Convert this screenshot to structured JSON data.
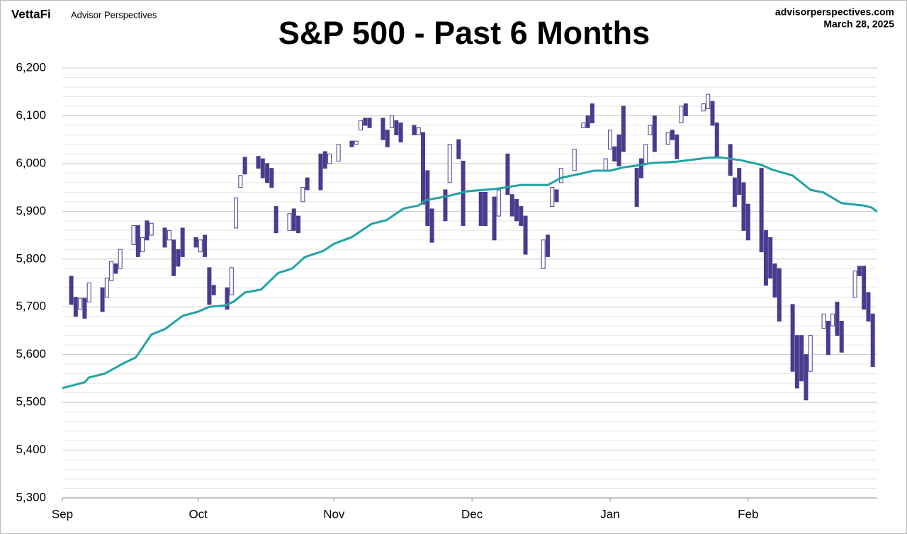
{
  "header": {
    "brand": "VettaFi",
    "publisher": "Advisor Perspectives",
    "site": "advisorperspectives.com",
    "date": "March 28, 2025"
  },
  "chart_data": {
    "type": "candlestick",
    "title": "S&P 500 - Past 6 Months",
    "xlim": [
      0,
      183
    ],
    "xticks": [
      {
        "value": 0,
        "label": "Sep"
      },
      {
        "value": 30.5,
        "label": "Oct"
      },
      {
        "value": 61,
        "label": "Nov"
      },
      {
        "value": 92,
        "label": "Dec"
      },
      {
        "value": 123,
        "label": "Jan"
      },
      {
        "value": 154,
        "label": "Feb"
      }
    ],
    "ylim": [
      5300,
      6200
    ],
    "yticks": [
      {
        "value": 5300,
        "label": "5,300"
      },
      {
        "value": 5400,
        "label": "5,400"
      },
      {
        "value": 5500,
        "label": "5,500"
      },
      {
        "value": 5600,
        "label": "5,600"
      },
      {
        "value": 5700,
        "label": "5,700"
      },
      {
        "value": 5800,
        "label": "5,800"
      },
      {
        "value": 5900,
        "label": "5,900"
      },
      {
        "value": 6000,
        "label": "6,000"
      },
      {
        "value": 6100,
        "label": "6,100"
      },
      {
        "value": 6200,
        "label": "6,200"
      }
    ],
    "grid": true,
    "minor_grid": true,
    "color": "#4b3b8f",
    "x": [
      2,
      3,
      4,
      5,
      6,
      9,
      10,
      11,
      12,
      13,
      16,
      17,
      18,
      19,
      20,
      23,
      24,
      25,
      26,
      27,
      30,
      31,
      32,
      33,
      34,
      37,
      38,
      39,
      40,
      41,
      44,
      45,
      46,
      47,
      48,
      51,
      52,
      53,
      54,
      55,
      58,
      59,
      60,
      62,
      65,
      66,
      67,
      68,
      69,
      72,
      73,
      74,
      75,
      76,
      79,
      80,
      81,
      82,
      83,
      86,
      87,
      89,
      90,
      94,
      95,
      97,
      98,
      100,
      101,
      102,
      103,
      104,
      108,
      109,
      110,
      111,
      112,
      115,
      117,
      118,
      119,
      122,
      123,
      124,
      125,
      126,
      129,
      130,
      131,
      132,
      133,
      136,
      137,
      138,
      139,
      140,
      144,
      145,
      146,
      147,
      150,
      151,
      152,
      153,
      154,
      157,
      158,
      159,
      160,
      161,
      164,
      165,
      166,
      167,
      168,
      171,
      172,
      173,
      174,
      175,
      178,
      179,
      180,
      181,
      182
    ],
    "open": [
      5764,
      5720,
      5695,
      5718,
      5710,
      5740,
      5720,
      5755,
      5790,
      5780,
      5830,
      5870,
      5815,
      5880,
      5850,
      5865,
      5840,
      5840,
      5820,
      5865,
      5845,
      5815,
      5850,
      5782,
      5745,
      5740,
      5725,
      5865,
      5950,
      6013,
      6015,
      6010,
      6000,
      5990,
      5910,
      5860,
      5905,
      5890,
      5920,
      5970,
      6020,
      6025,
      6000,
      6005,
      6047,
      6040,
      6070,
      6095,
      6095,
      6095,
      6070,
      6075,
      6090,
      6085,
      6080,
      6060,
      6065,
      5985,
      5905,
      5945,
      5960,
      6050,
      6005,
      5940,
      5940,
      5930,
      5890,
      6020,
      5935,
      5925,
      5910,
      5890,
      5780,
      5850,
      5910,
      5945,
      5960,
      5985,
      6075,
      6100,
      6125,
      5985,
      6030,
      6035,
      6060,
      6120,
      5990,
      6010,
      6000,
      6060,
      6100,
      6040,
      6070,
      6060,
      6085,
      6125,
      6110,
      6115,
      6130,
      6085,
      6040,
      5970,
      5990,
      5960,
      5915,
      5990,
      5860,
      5845,
      5790,
      5780,
      5705,
      5640,
      5640,
      5600,
      5565,
      5655,
      5670,
      5660,
      5710,
      5670,
      5720,
      5785,
      5785,
      5730,
      5685
    ],
    "close": [
      5705,
      5680,
      5718,
      5676,
      5750,
      5690,
      5760,
      5795,
      5770,
      5820,
      5870,
      5805,
      5845,
      5840,
      5875,
      5825,
      5860,
      5765,
      5785,
      5805,
      5825,
      5840,
      5805,
      5705,
      5725,
      5695,
      5782,
      5928,
      5975,
      5978,
      5990,
      5970,
      5960,
      5950,
      5855,
      5895,
      5860,
      5855,
      5950,
      5945,
      5945,
      5990,
      6020,
      6040,
      6035,
      6047,
      6090,
      6080,
      6075,
      6050,
      6035,
      6100,
      6060,
      6045,
      6060,
      6075,
      5915,
      5870,
      5835,
      5880,
      6040,
      6010,
      5870,
      5870,
      5870,
      5840,
      5945,
      5935,
      5890,
      5880,
      5870,
      5810,
      5840,
      5805,
      5950,
      5920,
      5990,
      6030,
      6085,
      6075,
      6085,
      6010,
      6070,
      6005,
      5995,
      6025,
      5910,
      5970,
      6040,
      6080,
      6025,
      6065,
      6050,
      6010,
      6120,
      6100,
      6125,
      6145,
      6080,
      6015,
      5975,
      5910,
      5935,
      5860,
      5840,
      5815,
      5745,
      5760,
      5720,
      5670,
      5565,
      5530,
      5545,
      5505,
      5640,
      5685,
      5600,
      5685,
      5640,
      5605,
      5775,
      5765,
      5695,
      5670,
      5575
    ],
    "moving_average": {
      "color": "#22a3a6",
      "x": [
        0,
        5,
        6,
        9.5,
        14,
        16.5,
        20,
        23,
        27,
        30.5,
        33,
        36.6,
        38.5,
        41,
        44.6,
        48.5,
        51.6,
        54.4,
        58.6,
        61,
        65,
        69.5,
        72.7,
        76.7,
        80,
        81.5,
        86.6,
        91,
        97.4,
        103,
        109,
        112,
        116.5,
        119.4,
        123,
        126,
        130,
        132.4,
        138,
        145,
        147.5,
        152.3,
        157,
        159.5,
        164,
        168,
        171,
        175,
        180,
        181.7,
        183
      ],
      "values": [
        5530,
        5542,
        5552,
        5560,
        5583,
        5594,
        5642,
        5653,
        5681,
        5690,
        5700,
        5703,
        5711,
        5730,
        5736,
        5771,
        5780,
        5804,
        5817,
        5832,
        5846,
        5874,
        5881,
        5906,
        5912,
        5923,
        5932,
        5942,
        5947,
        5955,
        5955,
        5970,
        5979,
        5985,
        5985,
        5992,
        5997,
        6001,
        6004,
        6012,
        6013,
        6007,
        5997,
        5987,
        5975,
        5945,
        5939,
        5917,
        5912,
        5908,
        5899
      ]
    }
  }
}
